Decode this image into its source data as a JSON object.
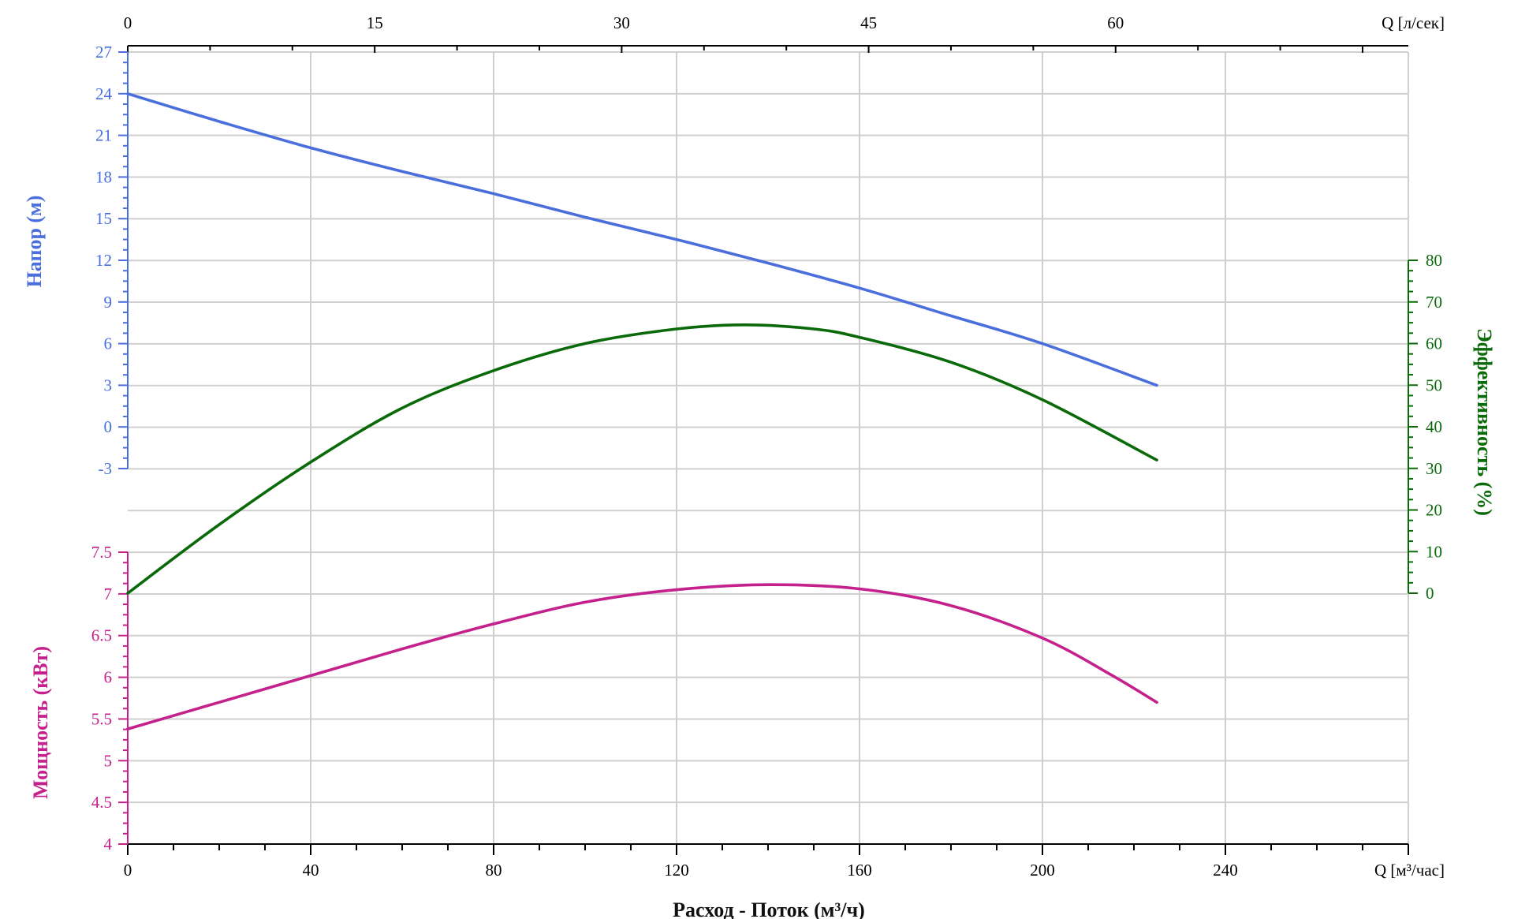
{
  "chart_data": {
    "type": "line",
    "xlabel": "Расход - Поток (м³/ч)",
    "x_axis": {
      "unit_label": "Q [м³/час]",
      "range": [
        0,
        280
      ],
      "ticks": [
        0,
        40,
        80,
        120,
        160,
        200,
        240
      ],
      "tick_labels": [
        "0",
        "40",
        "80",
        "120",
        "160",
        "200",
        "240"
      ]
    },
    "x_axis_top": {
      "unit_label": "Q [л/сек]",
      "range": [
        0,
        77.78
      ],
      "ticks": [
        0,
        15,
        30,
        45,
        60
      ],
      "tick_labels": [
        "0",
        "15",
        "30",
        "45",
        "60"
      ]
    },
    "head_axis": {
      "label": "Напор (м)",
      "range": [
        -3,
        27
      ],
      "ticks": [
        -3,
        0,
        3,
        6,
        9,
        12,
        15,
        18,
        21,
        24,
        27
      ],
      "tick_labels": [
        "-3",
        "0",
        "3",
        "6",
        "9",
        "12",
        "15",
        "18",
        "21",
        "24",
        "27"
      ]
    },
    "efficiency_axis": {
      "label": "Эффективность (%)",
      "range": [
        0,
        80
      ],
      "ticks": [
        0,
        10,
        20,
        30,
        40,
        50,
        60,
        70,
        80
      ],
      "tick_labels": [
        "0",
        "10",
        "20",
        "30",
        "40",
        "50",
        "60",
        "70",
        "80"
      ]
    },
    "power_axis": {
      "label": "Мощность (кВт)",
      "range": [
        4,
        7.5
      ],
      "ticks": [
        4,
        4.5,
        5,
        5.5,
        6,
        6.5,
        7,
        7.5
      ],
      "tick_labels": [
        "4",
        "4.5",
        "5",
        "5.5",
        "6",
        "6.5",
        "7",
        "7.5"
      ]
    },
    "grid": true,
    "series": [
      {
        "name": "Напор (м)",
        "axis": "head",
        "color": "#4a6fdc",
        "x": [
          0,
          20,
          40,
          60,
          80,
          100,
          120,
          140,
          160,
          180,
          200,
          225
        ],
        "y": [
          24.0,
          22.0,
          20.1,
          18.4,
          16.8,
          15.1,
          13.5,
          11.8,
          10.0,
          8.0,
          6.0,
          3.0
        ]
      },
      {
        "name": "Эффективность (%)",
        "axis": "efficiency",
        "color": "#0a6a0a",
        "x": [
          0,
          20,
          40,
          60,
          80,
          100,
          120,
          135,
          150,
          160,
          180,
          200,
          225
        ],
        "y": [
          0,
          16.5,
          31.5,
          44.5,
          53.5,
          60.0,
          63.5,
          64.5,
          63.5,
          61.5,
          55.5,
          46.5,
          32.0
        ]
      },
      {
        "name": "Мощность (кВт)",
        "axis": "power",
        "color": "#c4218c",
        "x": [
          0,
          20,
          40,
          60,
          80,
          100,
          120,
          140,
          160,
          180,
          200,
          215,
          225
        ],
        "y": [
          5.38,
          5.7,
          6.02,
          6.34,
          6.64,
          6.9,
          7.05,
          7.11,
          7.06,
          6.86,
          6.47,
          6.03,
          5.7
        ]
      }
    ]
  }
}
